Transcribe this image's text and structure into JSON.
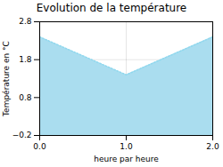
{
  "chart_data": {
    "type": "area",
    "title": "Evolution de la température",
    "x_label": "heure par heure",
    "y_label": "Température en °C",
    "x": [
      0,
      1,
      2
    ],
    "series": [
      {
        "type": "area",
        "color": "#aaddef",
        "values": [
          2.4,
          1.4,
          2.4
        ]
      },
      {
        "type": "line",
        "color": "#90d8ee",
        "line_style": "dotted",
        "values": [
          2.4,
          1.4,
          2.4
        ]
      }
    ],
    "xlim": [
      0,
      2
    ],
    "xticks": [
      0,
      1,
      2
    ],
    "ylim": [
      -0.2,
      2.8
    ],
    "yticks": [
      -0.2,
      0.8,
      1.8,
      2.8
    ],
    "grid": true
  }
}
